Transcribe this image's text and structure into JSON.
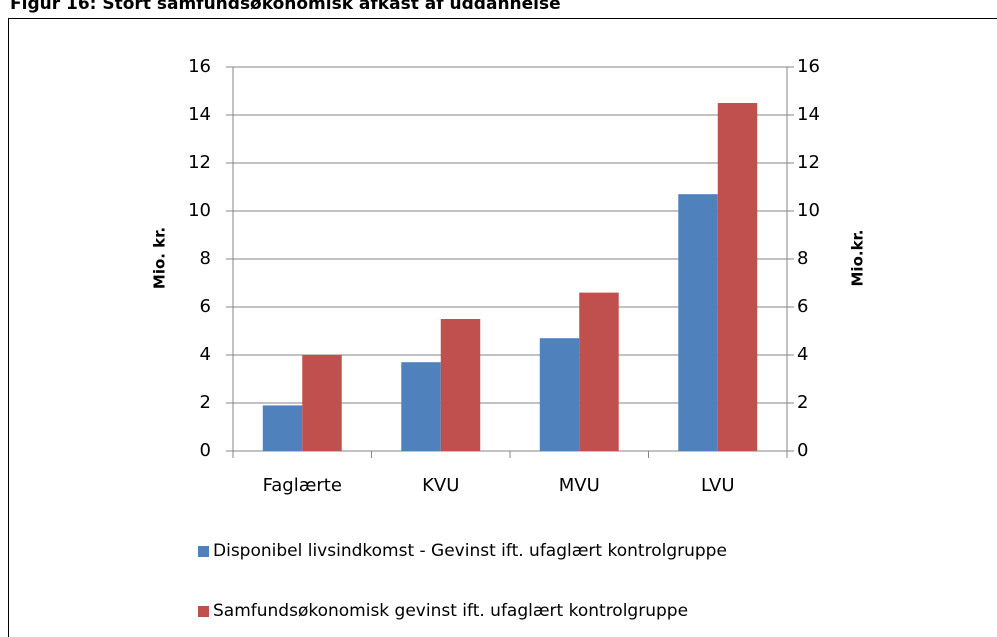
{
  "chart_data": {
    "type": "bar",
    "title": "Figur 16: Stort samfundsøkonomisk afkast af uddannelse",
    "categories": [
      "Faglærte",
      "KVU",
      "MVU",
      "LVU"
    ],
    "series": [
      {
        "name": "Disponibel livsindkomst - Gevinst ift. ufaglært kontrolgruppe",
        "color": "#4f81bd",
        "values": [
          1.9,
          3.7,
          4.7,
          10.7
        ]
      },
      {
        "name": "Samfundsøkonomisk gevinst ift. ufaglært kontrolgruppe",
        "color": "#c0504d",
        "values": [
          4.0,
          5.5,
          6.6,
          14.5
        ]
      }
    ],
    "ylabel": "Mio. kr.",
    "y2label": "Mio.kr.",
    "ylim": [
      0,
      16
    ],
    "yticks": [
      0,
      2,
      4,
      6,
      8,
      10,
      12,
      14,
      16
    ],
    "y2lim": [
      0,
      16
    ],
    "y2ticks": [
      0,
      2,
      4,
      6,
      8,
      10,
      12,
      14,
      16
    ],
    "grid": true
  }
}
